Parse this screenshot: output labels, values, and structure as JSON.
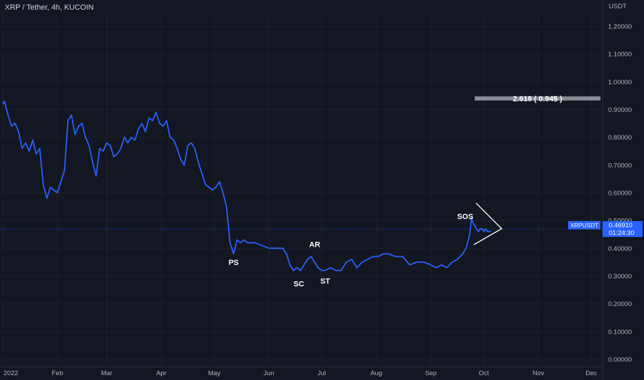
{
  "header": {
    "title": "XRP / Tether, 4h, KUCOIN"
  },
  "price_axis": {
    "unit": "USDT"
  },
  "last_price": {
    "symbol": "XRPUSDT",
    "value": "0.46910",
    "countdown": "01:24:30"
  },
  "colors": {
    "background": "#131722",
    "line": "#2962ff",
    "grid": "#1e222d",
    "text": "#b2b5be",
    "annotation": "#ffffff"
  },
  "chart_data": {
    "type": "line",
    "title": "XRP / Tether, 4h, KUCOIN",
    "ylabel": "USDT",
    "ylim": [
      -0.02,
      1.24
    ],
    "grid": true,
    "x_tick_labels": [
      "2022",
      "Feb",
      "Mar",
      "Apr",
      "May",
      "Jun",
      "Jul",
      "Aug",
      "Sep",
      "Oct",
      "Nov",
      "Dec"
    ],
    "y_ticks": [
      0.0,
      0.1,
      0.2,
      0.3,
      0.4,
      0.5,
      0.6,
      0.7,
      0.8,
      0.9,
      1.0,
      1.1,
      1.2
    ],
    "y_tick_labels": [
      "0.00000",
      "0.10000",
      "0.20000",
      "0.30000",
      "0.40000",
      "0.50000",
      "0.60000",
      "0.70000",
      "0.80000",
      "0.90000",
      "1.00000",
      "1.10000",
      "1.20000"
    ],
    "series": [
      {
        "x": [
          "2022-01-01",
          "2022-01-02",
          "2022-01-04",
          "2022-01-06",
          "2022-01-08",
          "2022-01-10",
          "2022-01-12",
          "2022-01-14",
          "2022-01-16",
          "2022-01-18",
          "2022-01-20",
          "2022-01-22",
          "2022-01-24",
          "2022-01-26",
          "2022-01-28",
          "2022-01-30",
          "2022-02-01",
          "2022-02-03",
          "2022-02-05",
          "2022-02-07",
          "2022-02-09",
          "2022-02-11",
          "2022-02-13",
          "2022-02-15",
          "2022-02-17",
          "2022-02-19",
          "2022-02-21",
          "2022-02-23",
          "2022-02-25",
          "2022-02-27",
          "2022-03-01",
          "2022-03-03",
          "2022-03-05",
          "2022-03-07",
          "2022-03-09",
          "2022-03-11",
          "2022-03-13",
          "2022-03-15",
          "2022-03-17",
          "2022-03-19",
          "2022-03-21",
          "2022-03-23",
          "2022-03-25",
          "2022-03-27",
          "2022-03-29",
          "2022-03-31",
          "2022-04-02",
          "2022-04-04",
          "2022-04-06",
          "2022-04-08",
          "2022-04-10",
          "2022-04-12",
          "2022-04-14",
          "2022-04-16",
          "2022-04-18",
          "2022-04-20",
          "2022-04-22",
          "2022-04-24",
          "2022-04-26",
          "2022-04-28",
          "2022-04-30",
          "2022-05-02",
          "2022-05-04",
          "2022-05-06",
          "2022-05-08",
          "2022-05-10",
          "2022-05-12",
          "2022-05-14",
          "2022-05-16",
          "2022-05-18",
          "2022-05-20",
          "2022-05-24",
          "2022-05-28",
          "2022-06-01",
          "2022-06-05",
          "2022-06-09",
          "2022-06-11",
          "2022-06-13",
          "2022-06-15",
          "2022-06-17",
          "2022-06-19",
          "2022-06-21",
          "2022-06-23",
          "2022-06-25",
          "2022-06-27",
          "2022-06-29",
          "2022-07-01",
          "2022-07-03",
          "2022-07-06",
          "2022-07-09",
          "2022-07-12",
          "2022-07-15",
          "2022-07-18",
          "2022-07-21",
          "2022-07-24",
          "2022-07-27",
          "2022-07-30",
          "2022-08-02",
          "2022-08-05",
          "2022-08-08",
          "2022-08-12",
          "2022-08-16",
          "2022-08-20",
          "2022-08-24",
          "2022-08-28",
          "2022-09-01",
          "2022-09-04",
          "2022-09-07",
          "2022-09-10",
          "2022-09-13",
          "2022-09-16",
          "2022-09-19",
          "2022-09-21",
          "2022-09-23",
          "2022-09-24",
          "2022-09-25",
          "2022-09-26",
          "2022-09-27",
          "2022-09-28",
          "2022-09-29",
          "2022-09-30",
          "2022-10-01",
          "2022-10-02",
          "2022-10-03",
          "2022-10-04",
          "2022-10-05"
        ],
        "values": [
          0.92,
          0.93,
          0.88,
          0.84,
          0.85,
          0.82,
          0.76,
          0.78,
          0.75,
          0.79,
          0.74,
          0.76,
          0.63,
          0.58,
          0.62,
          0.61,
          0.6,
          0.64,
          0.68,
          0.86,
          0.88,
          0.81,
          0.84,
          0.85,
          0.8,
          0.77,
          0.71,
          0.66,
          0.76,
          0.75,
          0.78,
          0.77,
          0.73,
          0.74,
          0.76,
          0.8,
          0.78,
          0.8,
          0.79,
          0.83,
          0.85,
          0.82,
          0.87,
          0.86,
          0.89,
          0.85,
          0.84,
          0.86,
          0.8,
          0.79,
          0.76,
          0.72,
          0.7,
          0.77,
          0.78,
          0.76,
          0.71,
          0.67,
          0.63,
          0.62,
          0.61,
          0.62,
          0.64,
          0.6,
          0.55,
          0.42,
          0.38,
          0.43,
          0.42,
          0.43,
          0.42,
          0.42,
          0.41,
          0.4,
          0.4,
          0.4,
          0.38,
          0.34,
          0.32,
          0.33,
          0.32,
          0.34,
          0.36,
          0.37,
          0.35,
          0.33,
          0.32,
          0.32,
          0.33,
          0.32,
          0.32,
          0.35,
          0.36,
          0.33,
          0.35,
          0.36,
          0.37,
          0.37,
          0.38,
          0.38,
          0.37,
          0.37,
          0.34,
          0.35,
          0.35,
          0.34,
          0.33,
          0.34,
          0.33,
          0.35,
          0.36,
          0.38,
          0.4,
          0.45,
          0.51,
          0.49,
          0.48,
          0.47,
          0.46,
          0.47,
          0.47,
          0.46,
          0.47,
          0.46,
          0.46,
          0.46
        ]
      }
    ],
    "annotations": [
      {
        "label": "PS",
        "x": "2022-05-12",
        "y": 0.38
      },
      {
        "label": "SC",
        "x": "2022-06-18",
        "y": 0.3
      },
      {
        "label": "AR",
        "x": "2022-06-27",
        "y": 0.37
      },
      {
        "label": "ST",
        "x": "2022-07-03",
        "y": 0.31
      },
      {
        "label": "SOS",
        "x": "2022-09-24",
        "y": 0.51
      }
    ],
    "level_box": {
      "label": "2.618 ( 0.94$ )",
      "y": 0.94,
      "x_start": "2022-10-01",
      "x_end": "2022-12-31"
    },
    "current_price": 0.4691
  }
}
